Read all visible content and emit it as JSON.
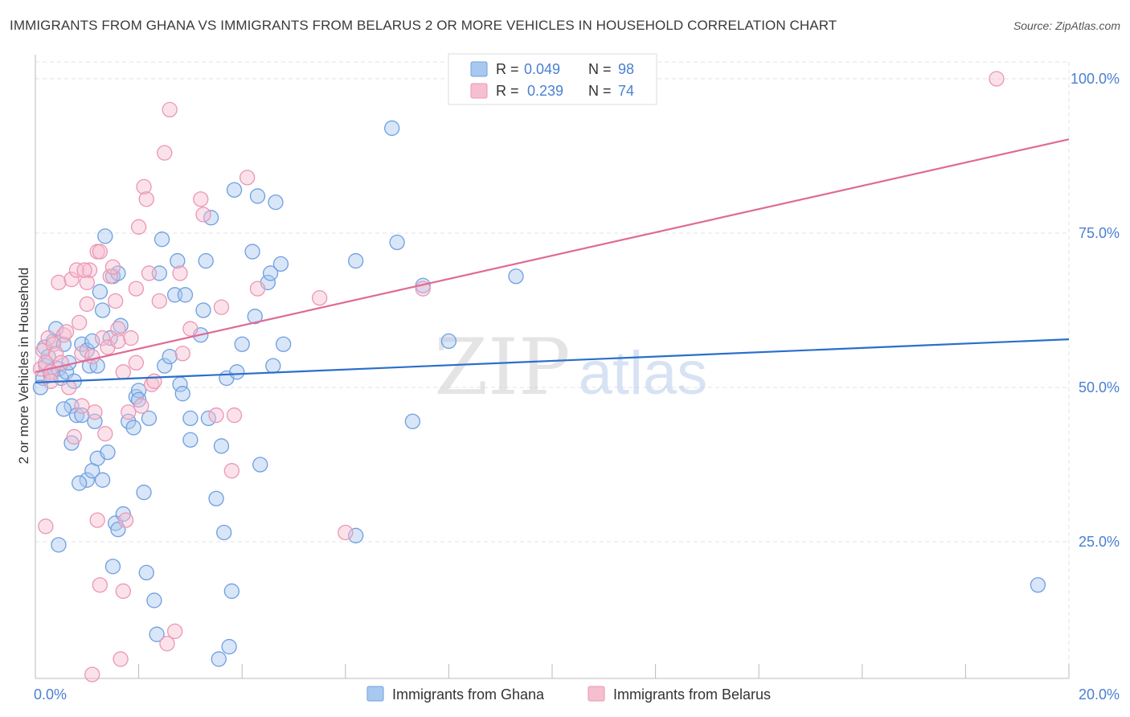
{
  "title": "IMMIGRANTS FROM GHANA VS IMMIGRANTS FROM BELARUS 2 OR MORE VEHICLES IN HOUSEHOLD CORRELATION CHART",
  "source": "Source: ZipAtlas.com",
  "watermark": {
    "zip": "ZIP",
    "atlas": "atlas"
  },
  "colors": {
    "ghana_fill": "#a9c8f0",
    "ghana_stroke": "#6f9fe0",
    "ghana_line": "#2a6fcc",
    "belarus_fill": "#f6bfd0",
    "belarus_stroke": "#ec96b2",
    "belarus_line": "#e06a95",
    "tick_blue": "#4a80d0",
    "grid": "#e3e3e3"
  },
  "legend": [
    {
      "r_label": "R =",
      "r_value": "0.049",
      "n_label": "N =",
      "n_value": "98"
    },
    {
      "r_label": "R =",
      "r_value": "0.239",
      "n_label": "N =",
      "n_value": "74"
    }
  ],
  "chart_data": {
    "type": "scatter",
    "title": "IMMIGRANTS FROM GHANA VS IMMIGRANTS FROM BELARUS 2 OR MORE VEHICLES IN HOUSEHOLD CORRELATION CHART",
    "xlabel": "",
    "ylabel": "2 or more Vehicles in Household",
    "xlim": [
      0,
      20
    ],
    "ylim": [
      0,
      100
    ],
    "x_tick_labels": [
      "0.0%",
      "20.0%"
    ],
    "y_tick_labels": [
      "100.0%",
      "75.0%",
      "50.0%",
      "25.0%"
    ],
    "y_tick_values": [
      100,
      75,
      50,
      25
    ],
    "legend_position": "bottom-center",
    "series": [
      {
        "name": "Immigrants from Ghana",
        "trend": {
          "x": [
            0,
            20
          ],
          "y": [
            50.8,
            57.8
          ]
        },
        "points": [
          [
            0.15,
            51.5
          ],
          [
            0.2,
            53.5
          ],
          [
            0.18,
            56.5
          ],
          [
            0.25,
            55
          ],
          [
            0.1,
            50
          ],
          [
            0.3,
            52
          ],
          [
            0.35,
            57.5
          ],
          [
            0.4,
            59.5
          ],
          [
            0.45,
            53
          ],
          [
            0.5,
            51.5
          ],
          [
            0.55,
            57
          ],
          [
            0.6,
            52.5
          ],
          [
            0.65,
            54
          ],
          [
            0.7,
            47
          ],
          [
            0.7,
            41
          ],
          [
            0.75,
            51
          ],
          [
            0.8,
            45.5
          ],
          [
            0.9,
            57
          ],
          [
            0.9,
            45.5
          ],
          [
            1.0,
            56
          ],
          [
            1.05,
            53.5
          ],
          [
            1.1,
            57.5
          ],
          [
            1.2,
            53.5
          ],
          [
            1.25,
            65.5
          ],
          [
            1.3,
            62.5
          ],
          [
            1.35,
            74.5
          ],
          [
            1.45,
            58
          ],
          [
            1.5,
            68
          ],
          [
            1.6,
            68.5
          ],
          [
            1.65,
            60
          ],
          [
            0.45,
            24.5
          ],
          [
            1.0,
            35
          ],
          [
            1.1,
            36.5
          ],
          [
            1.2,
            38.5
          ],
          [
            1.3,
            35
          ],
          [
            1.4,
            39.5
          ],
          [
            1.5,
            21
          ],
          [
            1.55,
            28
          ],
          [
            1.6,
            27
          ],
          [
            1.7,
            29.5
          ],
          [
            1.8,
            44.5
          ],
          [
            1.9,
            43.5
          ],
          [
            1.95,
            48.5
          ],
          [
            2.0,
            49.5
          ],
          [
            2.0,
            48
          ],
          [
            2.1,
            33
          ],
          [
            2.15,
            20
          ],
          [
            2.2,
            45
          ],
          [
            2.3,
            15.5
          ],
          [
            2.35,
            10
          ],
          [
            2.4,
            68.5
          ],
          [
            2.45,
            74
          ],
          [
            2.5,
            53.5
          ],
          [
            2.6,
            55
          ],
          [
            2.7,
            65
          ],
          [
            2.75,
            70.5
          ],
          [
            2.8,
            50.5
          ],
          [
            2.85,
            49
          ],
          [
            2.9,
            65
          ],
          [
            3.0,
            45
          ],
          [
            3.0,
            41.5
          ],
          [
            3.2,
            58.5
          ],
          [
            3.25,
            62.5
          ],
          [
            3.3,
            70.5
          ],
          [
            3.35,
            45
          ],
          [
            3.4,
            77.5
          ],
          [
            3.5,
            32
          ],
          [
            3.55,
            6
          ],
          [
            3.6,
            40.5
          ],
          [
            3.65,
            26.5
          ],
          [
            3.7,
            51.5
          ],
          [
            3.75,
            8
          ],
          [
            3.8,
            17
          ],
          [
            3.85,
            82
          ],
          [
            3.9,
            52.5
          ],
          [
            4.0,
            57
          ],
          [
            4.2,
            72
          ],
          [
            4.25,
            61.5
          ],
          [
            4.3,
            81
          ],
          [
            4.35,
            37.5
          ],
          [
            4.5,
            67
          ],
          [
            4.55,
            68.5
          ],
          [
            4.6,
            53.5
          ],
          [
            4.65,
            80
          ],
          [
            4.75,
            70
          ],
          [
            4.8,
            57
          ],
          [
            6.2,
            26
          ],
          [
            6.2,
            70.5
          ],
          [
            6.9,
            92
          ],
          [
            7.0,
            73.5
          ],
          [
            7.3,
            44.5
          ],
          [
            7.5,
            66.5
          ],
          [
            8.0,
            57.5
          ],
          [
            9.3,
            68
          ],
          [
            19.4,
            18
          ],
          [
            0.55,
            46.5
          ],
          [
            0.85,
            34.5
          ],
          [
            1.15,
            44.5
          ]
        ]
      },
      {
        "name": "Immigrants from Belarus",
        "trend": {
          "x": [
            0,
            20
          ],
          "y": [
            52.5,
            90.2
          ]
        },
        "points": [
          [
            0.1,
            53
          ],
          [
            0.15,
            56
          ],
          [
            0.2,
            54
          ],
          [
            0.2,
            27.5
          ],
          [
            0.25,
            58
          ],
          [
            0.3,
            52.5
          ],
          [
            0.35,
            57
          ],
          [
            0.4,
            55.5
          ],
          [
            0.45,
            67
          ],
          [
            0.5,
            54
          ],
          [
            0.55,
            58.5
          ],
          [
            0.6,
            59
          ],
          [
            0.65,
            50
          ],
          [
            0.7,
            67.5
          ],
          [
            0.75,
            42
          ],
          [
            0.8,
            69
          ],
          [
            0.85,
            60.5
          ],
          [
            0.9,
            47
          ],
          [
            0.9,
            55.5
          ],
          [
            1.0,
            63.5
          ],
          [
            1.0,
            67
          ],
          [
            1.05,
            69
          ],
          [
            1.1,
            55
          ],
          [
            1.15,
            46
          ],
          [
            1.2,
            72
          ],
          [
            1.2,
            28.5
          ],
          [
            1.25,
            18
          ],
          [
            1.3,
            58
          ],
          [
            1.35,
            42.5
          ],
          [
            1.4,
            56.5
          ],
          [
            1.45,
            68
          ],
          [
            1.5,
            69.5
          ],
          [
            1.55,
            64
          ],
          [
            1.6,
            59.5
          ],
          [
            1.6,
            57.5
          ],
          [
            1.7,
            52.5
          ],
          [
            1.7,
            17
          ],
          [
            1.75,
            28.5
          ],
          [
            1.8,
            46
          ],
          [
            1.85,
            58
          ],
          [
            1.95,
            54
          ],
          [
            1.95,
            66
          ],
          [
            2.0,
            76
          ],
          [
            2.05,
            47
          ],
          [
            2.1,
            82.5
          ],
          [
            2.15,
            80.5
          ],
          [
            2.2,
            68.5
          ],
          [
            2.25,
            50.5
          ],
          [
            2.3,
            51
          ],
          [
            2.4,
            64
          ],
          [
            2.5,
            88
          ],
          [
            2.55,
            8.5
          ],
          [
            2.6,
            95
          ],
          [
            2.7,
            10.5
          ],
          [
            2.8,
            68.5
          ],
          [
            2.85,
            55.5
          ],
          [
            3.0,
            59.5
          ],
          [
            3.2,
            80.5
          ],
          [
            3.25,
            78
          ],
          [
            3.5,
            45.5
          ],
          [
            3.6,
            63
          ],
          [
            3.8,
            36.5
          ],
          [
            3.85,
            45.5
          ],
          [
            4.1,
            84
          ],
          [
            4.3,
            66
          ],
          [
            5.5,
            64.5
          ],
          [
            6.0,
            26.5
          ],
          [
            7.5,
            66
          ],
          [
            1.1,
            3.5
          ],
          [
            1.65,
            6
          ],
          [
            0.3,
            51
          ],
          [
            1.25,
            72
          ],
          [
            18.6,
            100
          ],
          [
            0.95,
            69
          ]
        ]
      }
    ]
  }
}
